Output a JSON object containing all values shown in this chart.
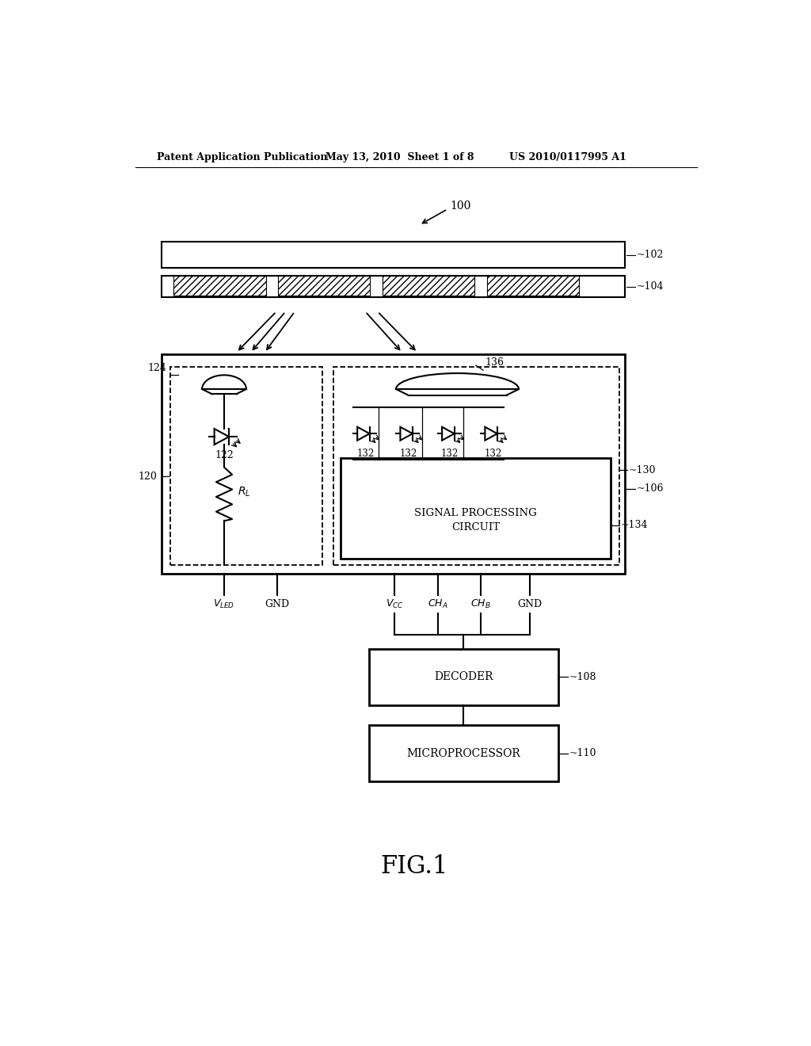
{
  "bg_color": "#ffffff",
  "header_left": "Patent Application Publication",
  "header_mid": "May 13, 2010  Sheet 1 of 8",
  "header_right": "US 2010/0117995 A1",
  "fig_label": "FIG.1"
}
